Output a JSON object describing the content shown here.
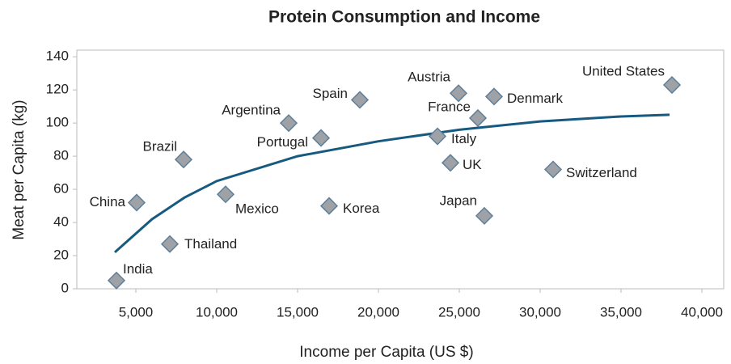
{
  "chart_data": {
    "type": "scatter",
    "title": "Protein Consumption and Income",
    "x_label": "Income per Capita (US $)",
    "y_label": "Meat per Capita (kg)",
    "labels": [
      "India",
      "China",
      "Thailand",
      "Brazil",
      "Mexico",
      "Argentina",
      "Portugal",
      "Korea",
      "Spain",
      "Austria",
      "Denmark",
      "France",
      "Italy",
      "UK",
      "Japan",
      "Switzerland",
      "United States"
    ],
    "x": [
      3800,
      5050,
      7100,
      7950,
      10550,
      14450,
      16450,
      16950,
      18850,
      24950,
      27150,
      26150,
      23650,
      24450,
      26550,
      30800,
      38150
    ],
    "values": [
      5,
      52,
      27,
      78,
      57,
      100,
      91,
      50,
      114,
      118,
      116,
      103,
      92,
      76,
      44,
      72,
      123
    ],
    "color": "#9ea2a6",
    "edge_color": "#5f7f99",
    "trend": {
      "x": [
        3700,
        6000,
        8000,
        10000,
        15000,
        20000,
        25000,
        30000,
        35000,
        38000
      ],
      "values": [
        22,
        42,
        55,
        65,
        80,
        89,
        96,
        101,
        104,
        105
      ],
      "color": "#175a80"
    },
    "xlim": [
      1350,
      41350
    ],
    "ylim": [
      0,
      144
    ],
    "xticks": [
      {
        "value": 5000,
        "label": "5,000"
      },
      {
        "value": 10000,
        "label": "10,000"
      },
      {
        "value": 15000,
        "label": "15,000"
      },
      {
        "value": 20000,
        "label": "20,000"
      },
      {
        "value": 25000,
        "label": "25,000"
      },
      {
        "value": 30000,
        "label": "30,000"
      },
      {
        "value": 35000,
        "label": "35,000"
      },
      {
        "value": 40000,
        "label": "40,000"
      }
    ],
    "yticks": [
      0,
      20,
      40,
      60,
      80,
      100,
      120,
      140
    ],
    "grid": false
  }
}
